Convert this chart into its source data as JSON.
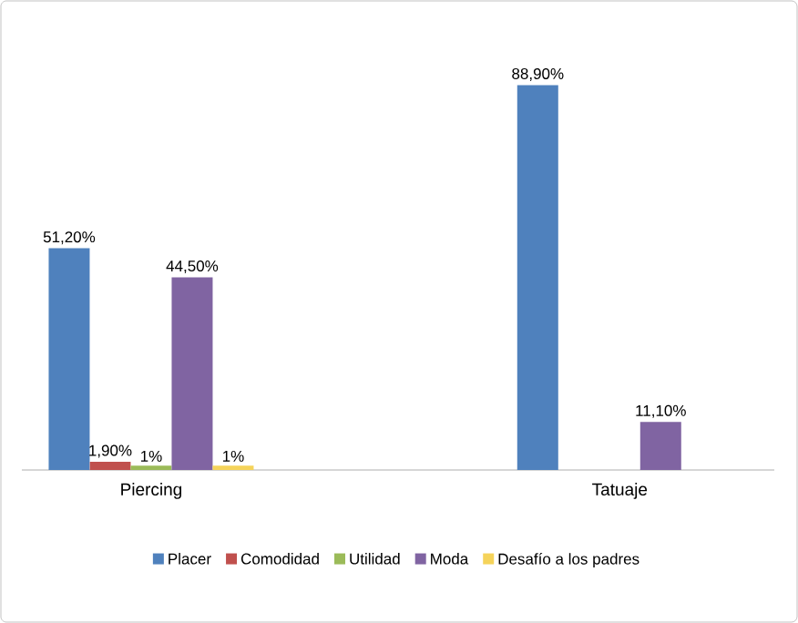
{
  "chart_data": {
    "type": "bar",
    "categories": [
      "Piercing",
      "Tatuaje"
    ],
    "legend": "bottom",
    "series": [
      {
        "name": "Placer",
        "color": "#4f81bd",
        "values": [
          51.2,
          88.9
        ],
        "value_labels": [
          "51,20%",
          "88,90%"
        ]
      },
      {
        "name": "Comodidad",
        "color": "#c0504d",
        "values": [
          1.9,
          null
        ],
        "value_labels": [
          "1,90%",
          null
        ]
      },
      {
        "name": "Utilidad",
        "color": "#9bbb59",
        "values": [
          1,
          null
        ],
        "value_labels": [
          "1%",
          null
        ]
      },
      {
        "name": "Moda",
        "color": "#8064a2",
        "values": [
          44.5,
          11.1
        ],
        "value_labels": [
          "44,50%",
          "11,10%"
        ]
      },
      {
        "name": "Desafío a los padres",
        "color": "#f5d35a",
        "values": [
          1,
          null
        ],
        "value_labels": [
          "1%",
          null
        ]
      }
    ]
  }
}
